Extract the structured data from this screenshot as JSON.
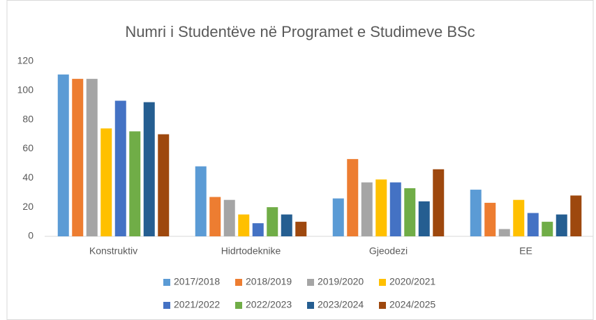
{
  "chart_data": {
    "type": "bar",
    "title": "Numri i Studentëve në Programet e Studimeve BSc",
    "categories": [
      "Konstruktiv",
      "Hidrtodeknike",
      "Gjeodezi",
      "EE"
    ],
    "series": [
      {
        "name": "2017/2018",
        "color": "#5b9bd5",
        "values": [
          111,
          48,
          26,
          32
        ]
      },
      {
        "name": "2018/2019",
        "color": "#ed7d31",
        "values": [
          108,
          27,
          53,
          23
        ]
      },
      {
        "name": "2019/2020",
        "color": "#a5a5a5",
        "values": [
          108,
          25,
          37,
          5
        ]
      },
      {
        "name": "2020/2021",
        "color": "#ffc000",
        "values": [
          74,
          15,
          39,
          25
        ]
      },
      {
        "name": "2021/2022",
        "color": "#4472c4",
        "values": [
          93,
          9,
          37,
          16
        ]
      },
      {
        "name": "2022/2023",
        "color": "#70ad47",
        "values": [
          72,
          20,
          33,
          10
        ]
      },
      {
        "name": "2023/2024",
        "color": "#255e91",
        "values": [
          92,
          15,
          24,
          15
        ]
      },
      {
        "name": "2024/2025",
        "color": "#9e480e",
        "values": [
          70,
          10,
          46,
          28
        ]
      }
    ],
    "ylim": [
      0,
      120
    ],
    "yticks": [
      0,
      20,
      40,
      60,
      80,
      100,
      120
    ],
    "grid": false,
    "legend": "bottom"
  }
}
